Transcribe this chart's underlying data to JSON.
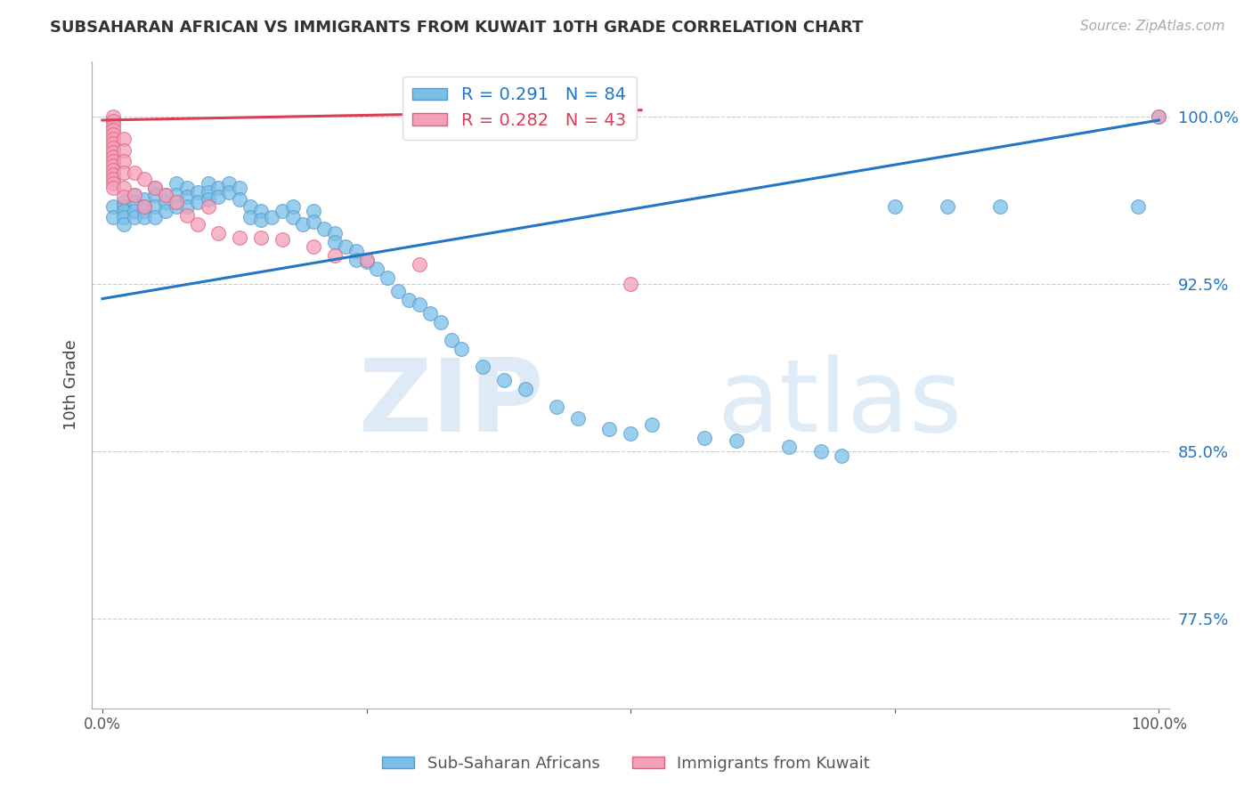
{
  "title": "SUBSAHARAN AFRICAN VS IMMIGRANTS FROM KUWAIT 10TH GRADE CORRELATION CHART",
  "source": "Source: ZipAtlas.com",
  "ylabel": "10th Grade",
  "y_ticks": [
    0.775,
    0.85,
    0.925,
    1.0
  ],
  "y_tick_labels": [
    "77.5%",
    "85.0%",
    "92.5%",
    "100.0%"
  ],
  "x_ticks": [
    0.0,
    0.25,
    0.5,
    0.75,
    1.0
  ],
  "x_tick_labels": [
    "0.0%",
    "",
    "",
    "",
    "100.0%"
  ],
  "xlim": [
    -0.01,
    1.01
  ],
  "ylim": [
    0.735,
    1.025
  ],
  "blue_R": 0.291,
  "blue_N": 84,
  "pink_R": 0.282,
  "pink_N": 43,
  "legend_blue_label": "Sub-Saharan Africans",
  "legend_pink_label": "Immigrants from Kuwait",
  "blue_color": "#7bbfe8",
  "pink_color": "#f4a0b8",
  "blue_edge": "#5599cc",
  "pink_edge": "#e06080",
  "blue_line_color": "#2176c7",
  "pink_line_color": "#d94055",
  "watermark_zip": "ZIP",
  "watermark_atlas": "atlas",
  "blue_line_x": [
    0.0,
    1.0
  ],
  "blue_line_y": [
    0.9185,
    0.9985
  ],
  "pink_line_x": [
    0.0,
    0.51
  ],
  "pink_line_y": [
    0.9985,
    1.003
  ],
  "blue_x": [
    0.01,
    0.01,
    0.02,
    0.02,
    0.02,
    0.02,
    0.02,
    0.03,
    0.03,
    0.03,
    0.03,
    0.04,
    0.04,
    0.04,
    0.04,
    0.05,
    0.05,
    0.05,
    0.05,
    0.06,
    0.06,
    0.06,
    0.07,
    0.07,
    0.07,
    0.08,
    0.08,
    0.08,
    0.09,
    0.09,
    0.1,
    0.1,
    0.1,
    0.11,
    0.11,
    0.12,
    0.12,
    0.13,
    0.13,
    0.14,
    0.14,
    0.15,
    0.15,
    0.16,
    0.17,
    0.18,
    0.18,
    0.19,
    0.2,
    0.2,
    0.21,
    0.22,
    0.22,
    0.23,
    0.24,
    0.24,
    0.25,
    0.26,
    0.27,
    0.28,
    0.29,
    0.3,
    0.31,
    0.32,
    0.33,
    0.34,
    0.36,
    0.38,
    0.4,
    0.43,
    0.45,
    0.48,
    0.5,
    0.52,
    0.57,
    0.6,
    0.65,
    0.68,
    0.7,
    0.75,
    0.8,
    0.85,
    0.98,
    1.0
  ],
  "blue_y": [
    0.96,
    0.955,
    0.962,
    0.96,
    0.958,
    0.955,
    0.952,
    0.965,
    0.962,
    0.958,
    0.955,
    0.963,
    0.96,
    0.958,
    0.955,
    0.968,
    0.965,
    0.96,
    0.955,
    0.965,
    0.962,
    0.958,
    0.97,
    0.965,
    0.96,
    0.968,
    0.964,
    0.96,
    0.966,
    0.962,
    0.97,
    0.966,
    0.963,
    0.968,
    0.964,
    0.97,
    0.966,
    0.968,
    0.963,
    0.96,
    0.955,
    0.958,
    0.954,
    0.955,
    0.958,
    0.96,
    0.955,
    0.952,
    0.958,
    0.953,
    0.95,
    0.948,
    0.944,
    0.942,
    0.94,
    0.936,
    0.935,
    0.932,
    0.928,
    0.922,
    0.918,
    0.916,
    0.912,
    0.908,
    0.9,
    0.896,
    0.888,
    0.882,
    0.878,
    0.87,
    0.865,
    0.86,
    0.858,
    0.862,
    0.856,
    0.855,
    0.852,
    0.85,
    0.848,
    0.96,
    0.96,
    0.96,
    0.96,
    1.0
  ],
  "pink_x": [
    0.01,
    0.01,
    0.01,
    0.01,
    0.01,
    0.01,
    0.01,
    0.01,
    0.01,
    0.01,
    0.01,
    0.01,
    0.01,
    0.01,
    0.01,
    0.01,
    0.01,
    0.02,
    0.02,
    0.02,
    0.02,
    0.02,
    0.02,
    0.03,
    0.03,
    0.04,
    0.04,
    0.05,
    0.06,
    0.07,
    0.08,
    0.09,
    0.1,
    0.11,
    0.13,
    0.15,
    0.17,
    0.2,
    0.22,
    0.25,
    0.3,
    0.5,
    1.0
  ],
  "pink_y": [
    1.0,
    0.998,
    0.996,
    0.994,
    0.992,
    0.99,
    0.988,
    0.986,
    0.984,
    0.982,
    0.98,
    0.978,
    0.976,
    0.974,
    0.972,
    0.97,
    0.968,
    0.99,
    0.985,
    0.98,
    0.975,
    0.968,
    0.964,
    0.975,
    0.965,
    0.972,
    0.96,
    0.968,
    0.965,
    0.962,
    0.956,
    0.952,
    0.96,
    0.948,
    0.946,
    0.946,
    0.945,
    0.942,
    0.938,
    0.936,
    0.934,
    0.925,
    1.0
  ]
}
